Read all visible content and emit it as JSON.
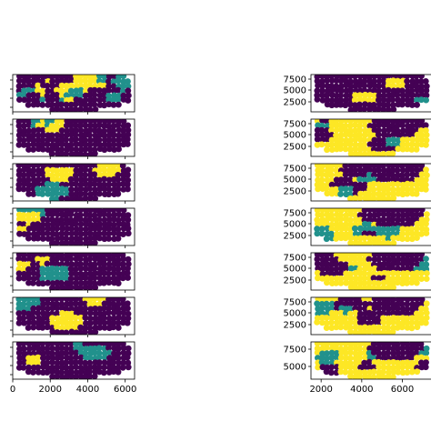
{
  "colors": {
    "purple": "#440154",
    "teal": "#21918c",
    "yellow": "#fde725",
    "axis": "#000000",
    "background": "#ffffff"
  },
  "chart_data": [
    {
      "type": "scatter",
      "grid": "small-multiples",
      "columns": 2,
      "rows": 7,
      "colormap": "viridis",
      "categories": [
        "0",
        "1",
        "2"
      ],
      "left_column": {
        "xlim": [
          0,
          6500
        ],
        "x_tick_values": [
          0,
          2000,
          4000,
          6000
        ],
        "x_tick_labels": [
          "0",
          "2000",
          "4000",
          "6000"
        ],
        "dominant_category": [
          "mixed",
          "0",
          "0",
          "0",
          "0",
          "0",
          "0"
        ],
        "y_tick_labels": []
      },
      "right_column": {
        "xlim": [
          1500,
          7500
        ],
        "x_tick_values": [
          2000,
          4000,
          6000
        ],
        "x_tick_labels": [
          "2000",
          "4000",
          "6000"
        ],
        "dominant_category": [
          "0",
          "2",
          "2",
          "2",
          "2",
          "2",
          "2"
        ],
        "y_tick_labels_by_row": [
          [
            "7500",
            "5000",
            "2500"
          ],
          [
            "7500",
            "5000",
            "2500"
          ],
          [
            "7500",
            "5000",
            "2500"
          ],
          [
            "7500",
            "5000",
            "2500"
          ],
          [
            "7500",
            "5000",
            "2500"
          ],
          [
            "7500",
            "5000",
            "2500"
          ],
          [
            "7500",
            "5000"
          ]
        ]
      }
    }
  ]
}
